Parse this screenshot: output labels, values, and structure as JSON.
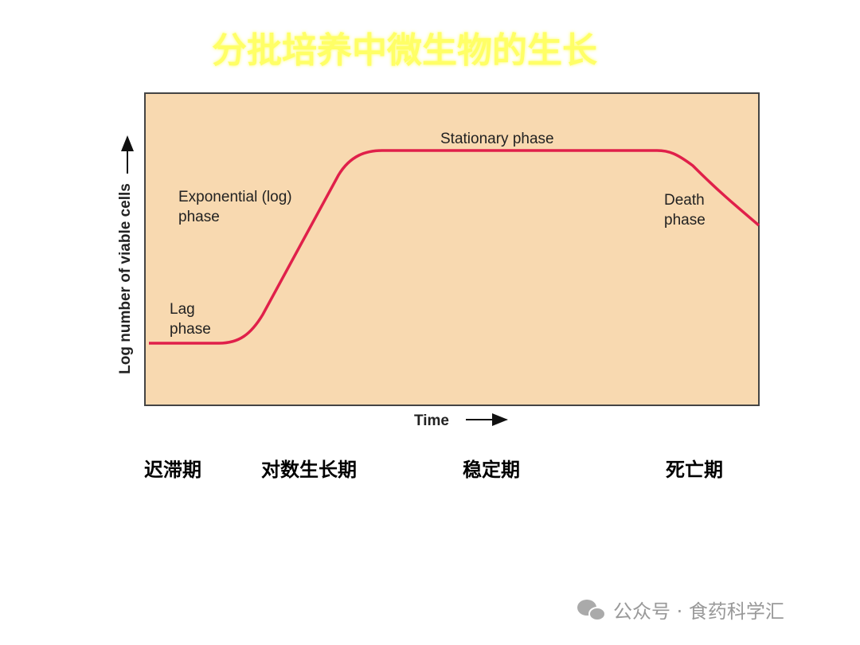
{
  "title": "分批培养中微生物的生长",
  "diagram": {
    "y_axis_label": "Log number of viable cells",
    "x_axis_label": "Time",
    "phases": [
      {
        "label_line1": "Lag",
        "label_line2": "phase"
      },
      {
        "label_line1": "Exponential (log)",
        "label_line2": "phase"
      },
      {
        "label_line1": "Stationary phase"
      },
      {
        "label_line1": "Death",
        "label_line2": "phase"
      }
    ]
  },
  "phase_names_cn": [
    "迟滞期",
    "对数生长期",
    "稳定期",
    "死亡期"
  ],
  "watermark": "公众号 · 食药科学汇"
}
